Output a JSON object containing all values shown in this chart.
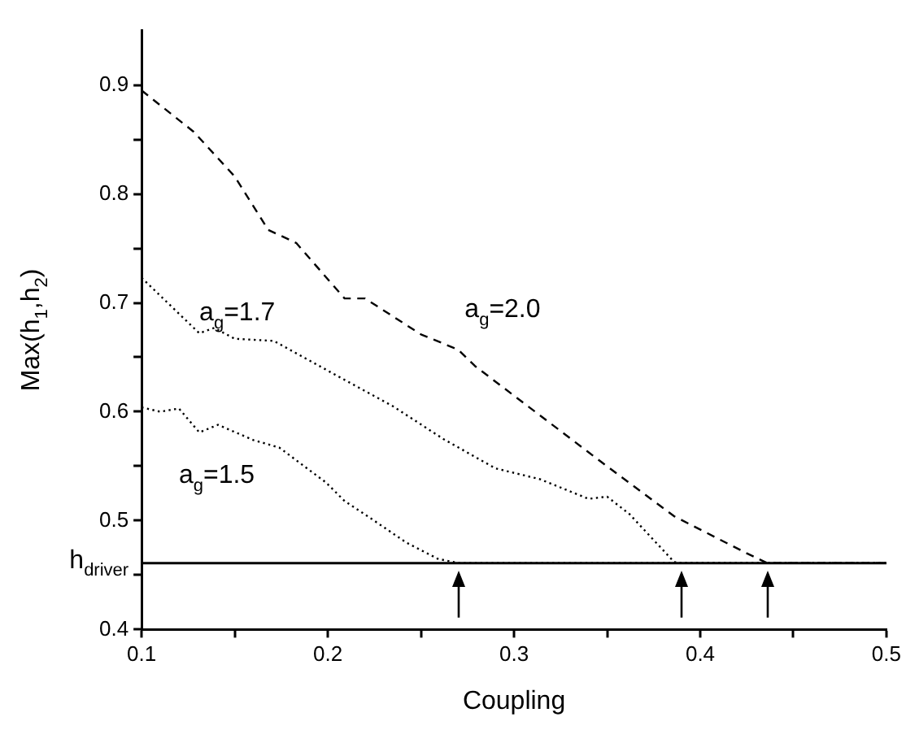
{
  "chart_data": {
    "type": "line",
    "xlabel": "Coupling",
    "ylabel": "Max(h$_{1}$,h$_{2}$)",
    "xlim": [
      0.1,
      0.5
    ],
    "ylim": [
      0.4,
      0.95
    ],
    "xticks": [
      0.1,
      {
        "value": 0.15,
        "label": null
      },
      0.2,
      {
        "value": 0.25,
        "label": null
      },
      0.3,
      {
        "value": 0.35,
        "label": null
      },
      0.4,
      {
        "value": 0.45,
        "label": null
      },
      0.5
    ],
    "yticks": [
      0.4,
      {
        "value": 0.45,
        "label": null
      },
      0.5,
      {
        "value": 0.55,
        "label": null
      },
      0.6,
      {
        "value": 0.65,
        "label": null
      },
      0.7,
      {
        "value": 0.75,
        "label": null
      },
      0.8,
      {
        "value": 0.85,
        "label": null
      },
      0.9
    ],
    "series": [
      {
        "name": "a$_{g}$=2.0",
        "color": "#000000",
        "line_style": "dashed",
        "x": [
          0.1,
          0.128,
          0.15,
          0.168,
          0.183,
          0.209,
          0.22,
          0.25,
          0.27,
          0.279,
          0.346,
          0.386,
          0.425,
          0.436,
          0.47,
          0.5
        ],
        "values": [
          0.895,
          0.857,
          0.816,
          0.767,
          0.755,
          0.704,
          0.704,
          0.671,
          0.657,
          0.642,
          0.555,
          0.504,
          0.47,
          0.461,
          0.461,
          0.461
        ]
      },
      {
        "name": "a$_{g}$=1.7",
        "color": "#000000",
        "line_style": "dotted",
        "x": [
          0.1,
          0.131,
          0.139,
          0.15,
          0.171,
          0.205,
          0.235,
          0.262,
          0.29,
          0.314,
          0.34,
          0.35,
          0.362,
          0.386,
          0.39,
          0.45,
          0.5
        ],
        "values": [
          0.723,
          0.672,
          0.677,
          0.667,
          0.665,
          0.633,
          0.605,
          0.575,
          0.548,
          0.538,
          0.52,
          0.522,
          0.506,
          0.462,
          0.461,
          0.461,
          0.461
        ]
      },
      {
        "name": "a$_{g}$=1.5",
        "color": "#000000",
        "line_style": "dotted",
        "x": [
          0.1,
          0.11,
          0.12,
          0.131,
          0.141,
          0.16,
          0.174,
          0.199,
          0.209,
          0.224,
          0.242,
          0.259,
          0.27,
          0.4,
          0.5
        ],
        "values": [
          0.604,
          0.6,
          0.603,
          0.581,
          0.588,
          0.574,
          0.567,
          0.535,
          0.518,
          0.501,
          0.48,
          0.465,
          0.461,
          0.461,
          0.461
        ]
      }
    ],
    "ref_lines": [
      {
        "axis": "y",
        "value": 0.461,
        "label": "h$_{driver}$",
        "color": "#000000",
        "line_style": "solid"
      }
    ]
  }
}
